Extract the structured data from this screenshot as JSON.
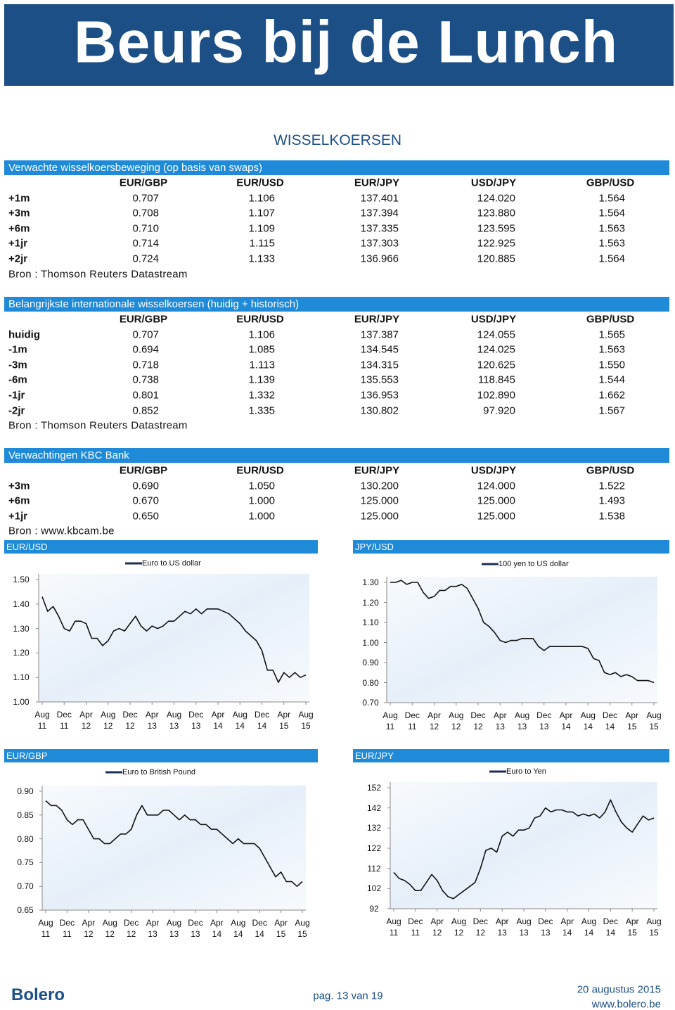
{
  "header": {
    "title": "Beurs bij de Lunch"
  },
  "section_title": "WISSELKOERSEN",
  "tables": [
    {
      "title": "Verwachte wisselkoersbeweging (op basis van swaps)",
      "columns": [
        "EUR/GBP",
        "EUR/USD",
        "EUR/JPY",
        "USD/JPY",
        "GBP/USD"
      ],
      "rows": [
        {
          "label": "+1m",
          "values": [
            "0.707",
            "1.106",
            "137.401",
            "124.020",
            "1.564"
          ]
        },
        {
          "label": "+3m",
          "values": [
            "0.708",
            "1.107",
            "137.394",
            "123.880",
            "1.564"
          ]
        },
        {
          "label": "+6m",
          "values": [
            "0.710",
            "1.109",
            "137.335",
            "123.595",
            "1.563"
          ]
        },
        {
          "label": "+1jr",
          "values": [
            "0.714",
            "1.115",
            "137.303",
            "122.925",
            "1.563"
          ]
        },
        {
          "label": "+2jr",
          "values": [
            "0.724",
            "1.133",
            "136.966",
            "120.885",
            "1.564"
          ]
        }
      ],
      "source": "Bron : Thomson Reuters Datastream"
    },
    {
      "title": "Belangrijkste internationale wisselkoersen (huidig + historisch)",
      "columns": [
        "EUR/GBP",
        "EUR/USD",
        "EUR/JPY",
        "USD/JPY",
        "GBP/USD"
      ],
      "rows": [
        {
          "label": "huidig",
          "values": [
            "0.707",
            "1.106",
            "137.387",
            "124.055",
            "1.565"
          ]
        },
        {
          "label": "-1m",
          "values": [
            "0.694",
            "1.085",
            "134.545",
            "124.025",
            "1.563"
          ]
        },
        {
          "label": "-3m",
          "values": [
            "0.718",
            "1.113",
            "134.315",
            "120.625",
            "1.550"
          ]
        },
        {
          "label": "-6m",
          "values": [
            "0.738",
            "1.139",
            "135.553",
            "118.845",
            "1.544"
          ]
        },
        {
          "label": "-1jr",
          "values": [
            "0.801",
            "1.332",
            "136.953",
            "102.890",
            "1.662"
          ]
        },
        {
          "label": "-2jr",
          "values": [
            "0.852",
            "1.335",
            "130.802",
            "97.920",
            "1.567"
          ]
        }
      ],
      "source": "Bron : Thomson Reuters Datastream"
    },
    {
      "title": "Verwachtingen KBC Bank",
      "columns": [
        "EUR/GBP",
        "EUR/USD",
        "EUR/JPY",
        "USD/JPY",
        "GBP/USD"
      ],
      "rows": [
        {
          "label": "+3m",
          "values": [
            "0.690",
            "1.050",
            "130.200",
            "124.000",
            "1.522"
          ]
        },
        {
          "label": "+6m",
          "values": [
            "0.670",
            "1.000",
            "125.000",
            "125.000",
            "1.493"
          ]
        },
        {
          "label": "+1jr",
          "values": [
            "0.650",
            "1.000",
            "125.000",
            "125.000",
            "1.538"
          ]
        }
      ],
      "source": "Bron : www.kbcam.be"
    }
  ],
  "chart_data": [
    {
      "type": "line",
      "title": "EUR/USD",
      "x": [
        "Aug 11",
        null,
        null,
        null,
        "Dec 11",
        null,
        null,
        null,
        "Apr 12",
        null,
        null,
        null,
        "Aug 12",
        null,
        null,
        null,
        "Dec 12",
        null,
        null,
        null,
        "Apr 13",
        null,
        null,
        null,
        "Aug 13",
        null,
        null,
        null,
        "Dec 13",
        null,
        null,
        null,
        "Apr 14",
        null,
        null,
        null,
        "Aug 14",
        null,
        null,
        null,
        "Dec 14",
        null,
        null,
        null,
        "Apr 15",
        null,
        null,
        null,
        "Aug 15"
      ],
      "series": [
        {
          "name": "Euro to US dollar",
          "color": "#111111",
          "values": [
            1.43,
            1.37,
            1.39,
            1.35,
            1.3,
            1.29,
            1.33,
            1.33,
            1.32,
            1.26,
            1.26,
            1.23,
            1.25,
            1.29,
            1.3,
            1.29,
            1.32,
            1.35,
            1.31,
            1.29,
            1.31,
            1.3,
            1.31,
            1.33,
            1.33,
            1.35,
            1.37,
            1.36,
            1.38,
            1.36,
            1.38,
            1.38,
            1.38,
            1.37,
            1.36,
            1.34,
            1.32,
            1.29,
            1.27,
            1.25,
            1.21,
            1.13,
            1.13,
            1.08,
            1.12,
            1.1,
            1.12,
            1.1,
            1.11
          ]
        }
      ],
      "ylim": [
        1.0,
        1.5
      ],
      "yticks": [
        {
          "value": 1.0,
          "label": "1.00"
        },
        {
          "value": 1.1,
          "label": "1.10"
        },
        {
          "value": 1.2,
          "label": "1.20"
        },
        {
          "value": 1.3,
          "label": "1.30"
        },
        {
          "value": 1.4,
          "label": "1.40"
        },
        {
          "value": 1.5,
          "label": "1.50"
        }
      ]
    },
    {
      "type": "line",
      "title": "JPY/USD",
      "x": [
        "Aug 11",
        null,
        null,
        null,
        "Dec 11",
        null,
        null,
        null,
        "Apr 12",
        null,
        null,
        null,
        "Aug 12",
        null,
        null,
        null,
        "Dec 12",
        null,
        null,
        null,
        "Apr 13",
        null,
        null,
        null,
        "Aug 13",
        null,
        null,
        null,
        "Dec 13",
        null,
        null,
        null,
        "Apr 14",
        null,
        null,
        null,
        "Aug 14",
        null,
        null,
        null,
        "Dec 14",
        null,
        null,
        null,
        "Apr 15",
        null,
        null,
        null,
        "Aug 15"
      ],
      "series": [
        {
          "name": "100 yen to US dollar",
          "color": "#111111",
          "values": [
            1.3,
            1.3,
            1.31,
            1.29,
            1.3,
            1.3,
            1.25,
            1.22,
            1.23,
            1.26,
            1.26,
            1.28,
            1.28,
            1.29,
            1.27,
            1.22,
            1.17,
            1.1,
            1.08,
            1.05,
            1.01,
            1.0,
            1.01,
            1.01,
            1.02,
            1.02,
            1.02,
            0.98,
            0.96,
            0.98,
            0.98,
            0.98,
            0.98,
            0.98,
            0.98,
            0.98,
            0.97,
            0.92,
            0.91,
            0.85,
            0.84,
            0.85,
            0.83,
            0.84,
            0.83,
            0.81,
            0.81,
            0.81,
            0.8
          ]
        }
      ],
      "ylim": [
        0.7,
        1.3
      ],
      "yticks": [
        {
          "value": 0.7,
          "label": "0.70"
        },
        {
          "value": 0.8,
          "label": "0.80"
        },
        {
          "value": 0.9,
          "label": "0.90"
        },
        {
          "value": 1.0,
          "label": "1.00"
        },
        {
          "value": 1.1,
          "label": "1.10"
        },
        {
          "value": 1.2,
          "label": "1.20"
        },
        {
          "value": 1.3,
          "label": "1.30"
        }
      ]
    },
    {
      "type": "line",
      "title": "EUR/GBP",
      "x": [
        "Aug 11",
        null,
        null,
        null,
        "Dec 11",
        null,
        null,
        null,
        "Apr 12",
        null,
        null,
        null,
        "Aug 12",
        null,
        null,
        null,
        "Dec 12",
        null,
        null,
        null,
        "Apr 13",
        null,
        null,
        null,
        "Aug 13",
        null,
        null,
        null,
        "Dec 13",
        null,
        null,
        null,
        "Apr 14",
        null,
        null,
        null,
        "Aug 14",
        null,
        null,
        null,
        "Dec 14",
        null,
        null,
        null,
        "Apr 15",
        null,
        null,
        null,
        "Aug 15"
      ],
      "series": [
        {
          "name": "Euro to British Pound",
          "color": "#111111",
          "values": [
            0.88,
            0.87,
            0.87,
            0.86,
            0.84,
            0.83,
            0.84,
            0.84,
            0.82,
            0.8,
            0.8,
            0.79,
            0.79,
            0.8,
            0.81,
            0.81,
            0.82,
            0.85,
            0.87,
            0.85,
            0.85,
            0.85,
            0.86,
            0.86,
            0.85,
            0.84,
            0.85,
            0.84,
            0.84,
            0.83,
            0.83,
            0.82,
            0.82,
            0.81,
            0.8,
            0.79,
            0.8,
            0.79,
            0.79,
            0.79,
            0.78,
            0.76,
            0.74,
            0.72,
            0.73,
            0.71,
            0.71,
            0.7,
            0.71
          ]
        }
      ],
      "ylim": [
        0.65,
        0.9
      ],
      "yticks": [
        0.65,
        {
          "value": 0.7,
          "label": "0.70"
        },
        0.75,
        {
          "value": 0.8,
          "label": "0.80"
        },
        0.85,
        {
          "value": 0.9,
          "label": "0.90"
        }
      ]
    },
    {
      "type": "line",
      "title": "EUR/JPY",
      "x": [
        "Aug 11",
        null,
        null,
        null,
        "Dec 11",
        null,
        null,
        null,
        "Apr 12",
        null,
        null,
        null,
        "Aug 12",
        null,
        null,
        null,
        "Dec 12",
        null,
        null,
        null,
        "Apr 13",
        null,
        null,
        null,
        "Aug 13",
        null,
        null,
        null,
        "Dec 13",
        null,
        null,
        null,
        "Apr 14",
        null,
        null,
        null,
        "Aug 14",
        null,
        null,
        null,
        "Dec 14",
        null,
        null,
        null,
        "Apr 15",
        null,
        null,
        null,
        "Aug 15"
      ],
      "series": [
        {
          "name": "Euro to Yen",
          "color": "#111111",
          "values": [
            110,
            107,
            106,
            104,
            101,
            101,
            105,
            109,
            106,
            101,
            98,
            97,
            99,
            101,
            103,
            105,
            112,
            121,
            122,
            120,
            128,
            130,
            128,
            131,
            131,
            132,
            137,
            138,
            142,
            140,
            141,
            141,
            140,
            140,
            138,
            139,
            138,
            139,
            137,
            140,
            146,
            140,
            135,
            132,
            130,
            134,
            138,
            136,
            137
          ]
        }
      ],
      "ylim": [
        92,
        152
      ],
      "yticks": [
        92,
        102,
        112,
        122,
        132,
        142,
        152
      ]
    }
  ],
  "footer": {
    "logo": "Bolero",
    "page": "pag. 13 van 19",
    "date": "20 augustus 2015",
    "url": "www.bolero.be"
  }
}
